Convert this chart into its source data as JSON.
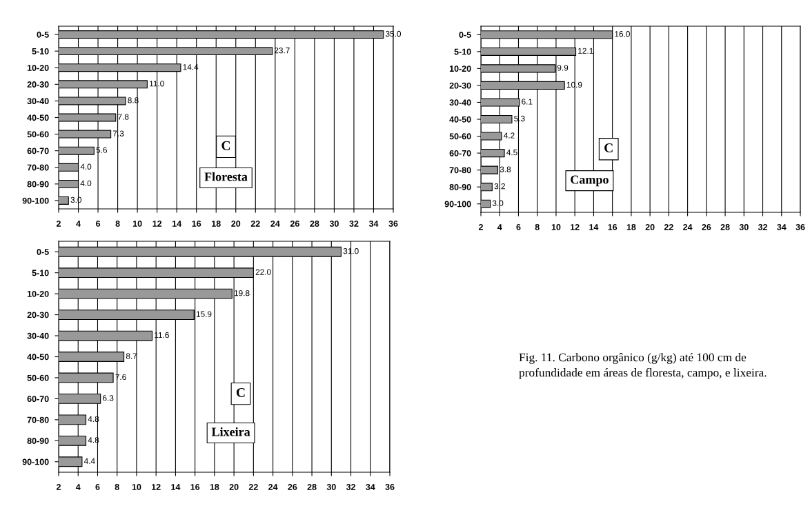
{
  "chart_data": [
    {
      "type": "bar",
      "orientation": "horizontal",
      "categories": [
        "0-5",
        "5-10",
        "10-20",
        "20-30",
        "30-40",
        "40-50",
        "50-60",
        "60-70",
        "70-80",
        "80-90",
        "90-100"
      ],
      "values": [
        35.0,
        23.7,
        14.4,
        11.0,
        8.8,
        7.8,
        7.3,
        5.6,
        4.0,
        4.0,
        3.0
      ],
      "value_labels": [
        "35.0",
        "23.7",
        "14.4",
        "11.0",
        "8.8",
        "7.8",
        "7.3",
        "5.6",
        "4.0",
        "4.0",
        "3.0"
      ],
      "color": "#999999",
      "xlim": [
        2,
        36
      ],
      "xticks": [
        2,
        4,
        6,
        8,
        10,
        12,
        14,
        16,
        18,
        20,
        22,
        24,
        26,
        28,
        30,
        32,
        34,
        36
      ],
      "grid": "x",
      "annotations": [
        "C",
        "Floresta"
      ]
    },
    {
      "type": "bar",
      "orientation": "horizontal",
      "categories": [
        "0-5",
        "5-10",
        "10-20",
        "20-30",
        "30-40",
        "40-50",
        "50-60",
        "60-70",
        "70-80",
        "80-90",
        "90-100"
      ],
      "values": [
        16.0,
        12.1,
        9.9,
        10.9,
        6.1,
        5.3,
        4.2,
        4.5,
        3.8,
        3.2,
        3.0
      ],
      "value_labels": [
        "16.0",
        "12.1",
        "9.9",
        "10.9",
        "6.1",
        "5.3",
        "4.2",
        "4.5",
        "3.8",
        "3.2",
        "3.0"
      ],
      "color": "#999999",
      "xlim": [
        2,
        36
      ],
      "xticks": [
        2,
        4,
        6,
        8,
        10,
        12,
        14,
        16,
        18,
        20,
        22,
        24,
        26,
        28,
        30,
        32,
        34,
        36
      ],
      "grid": "x",
      "annotations": [
        "C",
        "Campo"
      ]
    },
    {
      "type": "bar",
      "orientation": "horizontal",
      "categories": [
        "0-5",
        "5-10",
        "10-20",
        "20-30",
        "30-40",
        "40-50",
        "50-60",
        "60-70",
        "70-80",
        "80-90",
        "90-100"
      ],
      "values": [
        31.0,
        22.0,
        19.8,
        15.9,
        11.6,
        8.7,
        7.6,
        6.3,
        4.8,
        4.8,
        4.4
      ],
      "value_labels": [
        "31.0",
        "22.0",
        "19.8",
        "15.9",
        "11.6",
        "8.7",
        "7.6",
        "6.3",
        "4.8",
        "4.8",
        "4.4"
      ],
      "color": "#999999",
      "xlim": [
        2,
        36
      ],
      "xticks": [
        2,
        4,
        6,
        8,
        10,
        12,
        14,
        16,
        18,
        20,
        22,
        24,
        26,
        28,
        30,
        32,
        34,
        36
      ],
      "grid": "x",
      "annotations": [
        "C",
        "Lixeira",
        "Fig. 11. Carbono orgânico (g/kg) até 100 cm de profundidade em áreas de floresta, campo, e lixeira."
      ]
    }
  ]
}
